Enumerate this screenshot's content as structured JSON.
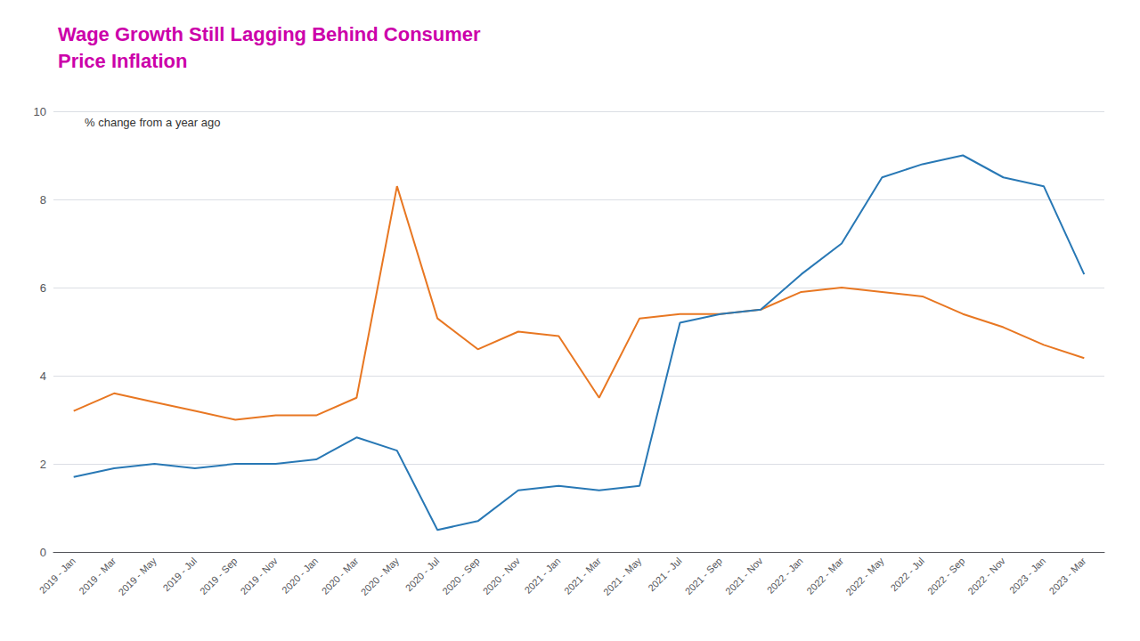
{
  "chart_data": {
    "type": "line",
    "title": "Wage Growth Still Lagging Behind Consumer\nPrice Inflation",
    "title_color": "#CC00AA",
    "annotation": "% change from a year ago",
    "categories": [
      "2019 - Jan",
      "2019 - Mar",
      "2019 - May",
      "2019 - Jul",
      "2019 - Sep",
      "2019 - Nov",
      "2020 - Jan",
      "2020 - Mar",
      "2020 - May",
      "2020 - Jul",
      "2020 - Sep",
      "2020 - Nov",
      "2021 - Jan",
      "2021 - Mar",
      "2021 - May",
      "2021 - Jul",
      "2021 - Sep",
      "2021 - Nov",
      "2022 - Jan",
      "2022 - Mar",
      "2022 - May",
      "2022 - Jul",
      "2022 - Sep",
      "2022 - Nov",
      "2023 - Jan",
      "2023 - Mar"
    ],
    "series": [
      {
        "color": "#E87722",
        "values": [
          3.2,
          3.6,
          3.4,
          3.2,
          3.0,
          3.1,
          3.1,
          3.5,
          8.3,
          5.3,
          4.6,
          5.0,
          4.9,
          3.5,
          5.3,
          5.4,
          5.4,
          5.5,
          5.9,
          6.0,
          5.9,
          5.8,
          5.4,
          5.1,
          4.7,
          4.4
        ]
      },
      {
        "color": "#2878B5",
        "values": [
          1.7,
          1.9,
          2.0,
          1.9,
          2.0,
          2.0,
          2.1,
          2.6,
          2.3,
          0.5,
          0.7,
          1.4,
          1.5,
          1.4,
          1.5,
          5.2,
          5.4,
          5.5,
          6.3,
          7.0,
          8.5,
          8.8,
          9.0,
          8.5,
          8.3,
          6.3
        ]
      }
    ],
    "ylim": [
      0,
      10
    ],
    "yticks": [
      0,
      2,
      4,
      6,
      8,
      10
    ],
    "grid": true
  }
}
